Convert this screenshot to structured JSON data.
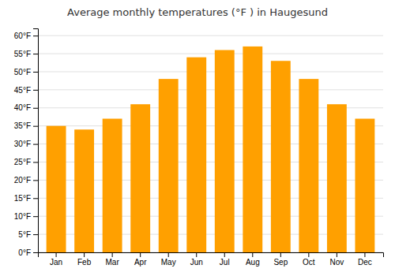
{
  "chart_data": {
    "type": "bar",
    "title": "Average monthly temperatures (°F ) in Haugesund",
    "categories": [
      "Jan",
      "Feb",
      "Mar",
      "Apr",
      "May",
      "Jun",
      "Jul",
      "Aug",
      "Sep",
      "Oct",
      "Nov",
      "Dec"
    ],
    "values": [
      35,
      34,
      37,
      41,
      48,
      54,
      56,
      57,
      53,
      48,
      41,
      37
    ],
    "color": "#FFA000",
    "ylim": [
      0,
      62
    ],
    "yticks": [
      {
        "value": 0,
        "label": "0°F"
      },
      {
        "value": 5,
        "label": "5°F"
      },
      {
        "value": 10,
        "label": "10°F"
      },
      {
        "value": 15,
        "label": "15°F"
      },
      {
        "value": 20,
        "label": "20°F"
      },
      {
        "value": 25,
        "label": "25°F"
      },
      {
        "value": 30,
        "label": "30°F"
      },
      {
        "value": 35,
        "label": "35°F"
      },
      {
        "value": 40,
        "label": "40°F"
      },
      {
        "value": 45,
        "label": "45°F"
      },
      {
        "value": 50,
        "label": "50°F"
      },
      {
        "value": 55,
        "label": "55°F"
      },
      {
        "value": 60,
        "label": "60°F"
      }
    ],
    "grid": true
  }
}
